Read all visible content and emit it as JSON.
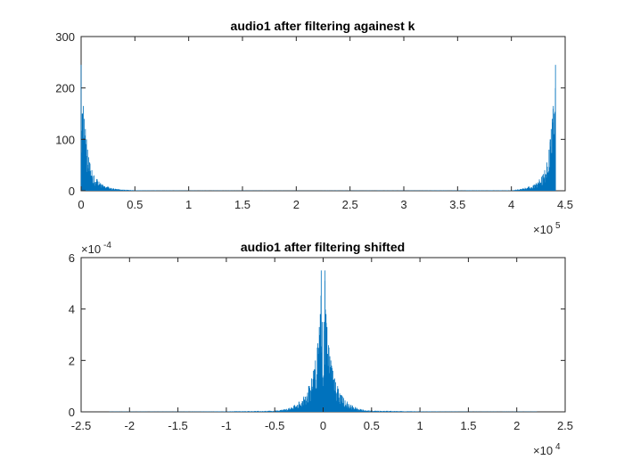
{
  "chart_data": [
    {
      "type": "line",
      "title": "audio1 after filtering againest k",
      "xlabel": "",
      "ylabel": "",
      "xlim": [
        0,
        450000
      ],
      "ylim": [
        0,
        300
      ],
      "x_ticks": [
        0,
        50000,
        100000,
        150000,
        200000,
        250000,
        300000,
        350000,
        400000,
        450000
      ],
      "x_tick_labels": [
        "0",
        "0.5",
        "1",
        "1.5",
        "2",
        "2.5",
        "3",
        "3.5",
        "4",
        "4.5"
      ],
      "y_ticks": [
        0,
        100,
        200,
        300
      ],
      "y_tick_labels": [
        "0",
        "100",
        "200",
        "300"
      ],
      "x_exponent": {
        "base": "×10",
        "power": "5"
      },
      "grid": false,
      "series_color": "#0072BD",
      "x_data_range": [
        0,
        441000
      ],
      "series": [
        {
          "x": [
            0,
            1000,
            2000,
            3000,
            4000,
            5000,
            6000,
            8000,
            10000,
            12000,
            15000,
            18000,
            20000,
            25000,
            30000,
            35000,
            50000,
            100000,
            200000,
            300000,
            400000,
            406000,
            411000,
            416000,
            421000,
            423000,
            426000,
            429000,
            431000,
            433000,
            435000,
            436000,
            437000,
            438000,
            439000,
            440000,
            441000
          ],
          "values": [
            245,
            150,
            165,
            140,
            120,
            100,
            80,
            55,
            40,
            30,
            22,
            15,
            12,
            8,
            5,
            3,
            1,
            0.5,
            0.3,
            0.5,
            1,
            3,
            5,
            8,
            12,
            15,
            22,
            30,
            40,
            55,
            80,
            100,
            120,
            140,
            165,
            150,
            245
          ]
        }
      ]
    },
    {
      "type": "line",
      "title": "audio1 after filtering shifted",
      "xlabel": "",
      "ylabel": "",
      "xlim": [
        -25000,
        25000
      ],
      "ylim": [
        0,
        0.0006
      ],
      "x_ticks": [
        -25000,
        -20000,
        -15000,
        -10000,
        -5000,
        0,
        5000,
        10000,
        15000,
        20000,
        25000
      ],
      "x_tick_labels": [
        "-2.5",
        "-2",
        "-1.5",
        "-1",
        "-0.5",
        "0",
        "0.5",
        "1",
        "1.5",
        "2",
        "2.5"
      ],
      "y_ticks": [
        0,
        0.0002,
        0.0004,
        0.0006
      ],
      "y_tick_labels": [
        "0",
        "2",
        "4",
        "6"
      ],
      "x_exponent": {
        "base": "×10",
        "power": "4"
      },
      "y_exponent": {
        "base": "×10",
        "power": "-4"
      },
      "grid": false,
      "series_color": "#0072BD",
      "x_data_range": [
        -22050,
        22050
      ],
      "series": [
        {
          "x": [
            -22050,
            -15000,
            -10000,
            -5000,
            -4000,
            -3500,
            -3000,
            -2500,
            -2000,
            -1500,
            -1200,
            -1000,
            -800,
            -600,
            -400,
            -300,
            -200,
            -100,
            0,
            100,
            200,
            300,
            400,
            600,
            800,
            1000,
            1200,
            1500,
            2000,
            2500,
            3000,
            3500,
            4000,
            5000,
            10000,
            15000,
            22050
          ],
          "values": [
            1e-06,
            1e-06,
            2e-06,
            5e-06,
            1e-05,
            1.5e-05,
            2.5e-05,
            4e-05,
            6e-05,
            0.0001,
            0.00013,
            0.00016,
            0.0002,
            0.00025,
            0.00033,
            0.00038,
            0.00055,
            0.00035,
            0.0001,
            0.00035,
            0.00055,
            0.00038,
            0.00033,
            0.00025,
            0.0002,
            0.00016,
            0.00013,
            0.0001,
            6e-05,
            4e-05,
            2.5e-05,
            1.5e-05,
            1e-05,
            5e-06,
            2e-06,
            1e-06,
            1e-06
          ]
        }
      ]
    }
  ]
}
